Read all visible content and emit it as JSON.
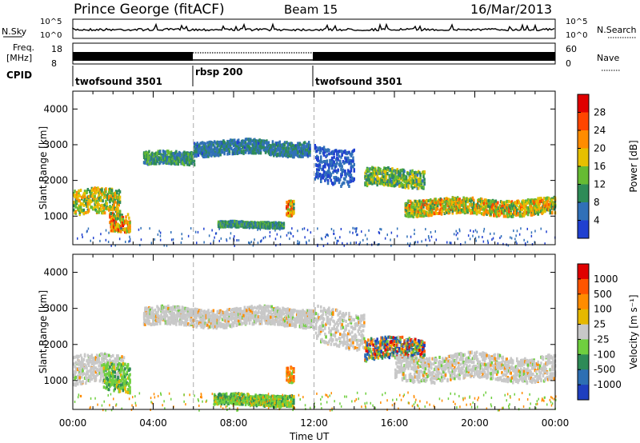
{
  "header": {
    "station": "Prince George (fitACF)",
    "beam": "Beam 15",
    "date": "16/Mar/2013"
  },
  "top_strip": {
    "left_label": "N.Sky",
    "right_label": "N.Search",
    "ticks": [
      "10^5",
      "10^0"
    ]
  },
  "freq_strip": {
    "left_label_1": "Freq.",
    "left_label_2": "[MHz]",
    "right_label": "Nave",
    "left_ticks": [
      "18",
      "8"
    ],
    "right_ticks": [
      "60",
      "0"
    ]
  },
  "cpid": {
    "label": "CPID",
    "segments": [
      {
        "name": "twofsound 3501",
        "start_hour": 0,
        "end_hour": 6
      },
      {
        "name": "rbsp 200",
        "start_hour": 6,
        "end_hour": 12
      },
      {
        "name": "twofsound 3501",
        "start_hour": 12,
        "end_hour": 24
      }
    ]
  },
  "colors": {
    "power_scale": [
      "#2040d0",
      "#3070b8",
      "#2e8b57",
      "#66bb33",
      "#e6c000",
      "#ff8c00",
      "#ff4500",
      "#e00000"
    ],
    "velocity_scale": [
      "#1f3fbf",
      "#2d6fb3",
      "#2e8b57",
      "#6fcf3f",
      "#c8c8c8",
      "#e6b800",
      "#ff8c00",
      "#ff5500",
      "#e00000"
    ],
    "ground_scatter": "#c8c8c8"
  },
  "chart_data": [
    {
      "type": "heatmap",
      "name": "power",
      "ylabel": "Slant Range [km]",
      "xlabel": "Time UT",
      "x_range_hours": [
        0,
        24
      ],
      "ylim": [
        200,
        4500
      ],
      "yticks": [
        "1000",
        "2000",
        "3000",
        "4000"
      ],
      "xticks": [
        "00:00",
        "04:00",
        "08:00",
        "12:00",
        "16:00",
        "20:00",
        "00:00"
      ],
      "colorbar": {
        "label": "Power [dB]",
        "ticks": [
          "28",
          "24",
          "20",
          "16",
          "12",
          "8",
          "4"
        ],
        "range": [
          0,
          30
        ]
      },
      "features": [
        {
          "t0": 0.0,
          "t1": 2.3,
          "r_center": 1400,
          "r_half": 350,
          "peak_db": 22
        },
        {
          "t0": 1.8,
          "t1": 2.8,
          "r_center": 900,
          "r_half": 250,
          "peak_db": 28
        },
        {
          "t0": 3.5,
          "t1": 6.0,
          "r_center": 2650,
          "r_half": 180,
          "peak_db": 14
        },
        {
          "t0": 6.0,
          "t1": 11.8,
          "r_center": 2950,
          "r_half": 200,
          "peak_db": 10
        },
        {
          "t0": 7.2,
          "t1": 10.5,
          "r_center": 800,
          "r_half": 80,
          "peak_db": 14
        },
        {
          "t0": 10.6,
          "t1": 11.0,
          "r_center": 1250,
          "r_half": 220,
          "peak_db": 28
        },
        {
          "t0": 12.0,
          "t1": 14.0,
          "r_center": 2500,
          "r_half": 500,
          "peak_db": 6
        },
        {
          "t0": 14.5,
          "t1": 17.5,
          "r_center": 2100,
          "r_half": 250,
          "peak_db": 18
        },
        {
          "t0": 16.5,
          "t1": 24.0,
          "r_center": 1300,
          "r_half": 220,
          "peak_db": 24
        }
      ]
    },
    {
      "type": "heatmap",
      "name": "velocity",
      "ylabel": "Slant Range [km]",
      "xlabel": "Time UT",
      "x_range_hours": [
        0,
        24
      ],
      "ylim": [
        200,
        4500
      ],
      "yticks": [
        "1000",
        "2000",
        "3000",
        "4000"
      ],
      "xticks": [
        "00:00",
        "04:00",
        "08:00",
        "12:00",
        "16:00",
        "20:00",
        "00:00"
      ],
      "colorbar": {
        "label": "Velocity [m s⁻¹]",
        "ticks": [
          "1000",
          "500",
          "100",
          "25",
          "-25",
          "-100",
          "-500",
          "-1000"
        ]
      },
      "features": [
        {
          "t0": 0.0,
          "t1": 2.5,
          "r_center": 1300,
          "r_half": 400,
          "kind": "ground"
        },
        {
          "t0": 1.5,
          "t1": 2.8,
          "r_center": 1200,
          "r_half": 400,
          "kind": "green"
        },
        {
          "t0": 3.5,
          "t1": 12.0,
          "r_center": 2800,
          "r_half": 250,
          "kind": "ground"
        },
        {
          "t0": 10.6,
          "t1": 11.0,
          "r_center": 1250,
          "r_half": 220,
          "kind": "orange"
        },
        {
          "t0": 7.0,
          "t1": 11.0,
          "r_center": 500,
          "r_half": 150,
          "kind": "green"
        },
        {
          "t0": 12.0,
          "t1": 14.5,
          "r_center": 2500,
          "r_half": 500,
          "kind": "ground"
        },
        {
          "t0": 14.5,
          "t1": 17.5,
          "r_center": 1900,
          "r_half": 300,
          "kind": "mixed"
        },
        {
          "t0": 16.0,
          "t1": 24.0,
          "r_center": 1400,
          "r_half": 350,
          "kind": "ground"
        }
      ]
    }
  ]
}
